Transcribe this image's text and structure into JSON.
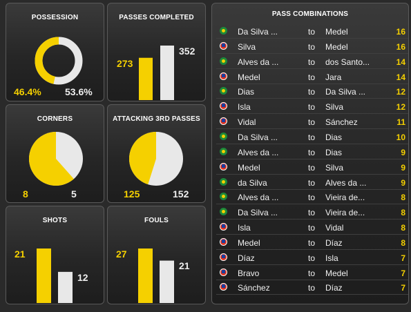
{
  "colors": {
    "yellow": "#f5d000",
    "white": "#e8e8e8",
    "background": "#2a2a2a"
  },
  "possession": {
    "title": "POSSESSION",
    "left": "46.4%",
    "right": "53.6%",
    "left_fraction": 0.464
  },
  "passes": {
    "title": "PASSES COMPLETED",
    "left": "273",
    "right": "352",
    "left_value": 273,
    "right_value": 352
  },
  "corners": {
    "title": "CORNERS",
    "left": "8",
    "right": "5",
    "left_value": 8,
    "right_value": 5
  },
  "attacking": {
    "title": "ATTACKING 3RD PASSES",
    "left": "125",
    "right": "152",
    "left_value": 125,
    "right_value": 152
  },
  "shots": {
    "title": "SHOTS",
    "left": "21",
    "right": "12",
    "left_value": 21,
    "right_value": 12
  },
  "fouls": {
    "title": "FOULS",
    "left": "27",
    "right": "21",
    "left_value": 27,
    "right_value": 21
  },
  "combos": {
    "title": "PASS COMBINATIONS",
    "connector": "to",
    "rows": [
      {
        "flag": "brazil-flag-icon",
        "from": "Da Silva ...",
        "to": "Medel",
        "count": "16"
      },
      {
        "flag": "chile-flag-icon",
        "from": "Silva",
        "to": "Medel",
        "count": "16"
      },
      {
        "flag": "brazil-flag-icon",
        "from": "Alves da ...",
        "to": "dos Santo...",
        "count": "14"
      },
      {
        "flag": "chile-flag-icon",
        "from": "Medel",
        "to": "Jara",
        "count": "14"
      },
      {
        "flag": "brazil-flag-icon",
        "from": "Dias",
        "to": "Da Silva ...",
        "count": "12"
      },
      {
        "flag": "chile-flag-icon",
        "from": "Isla",
        "to": "Silva",
        "count": "12"
      },
      {
        "flag": "chile-flag-icon",
        "from": "Vidal",
        "to": "Sánchez",
        "count": "11"
      },
      {
        "flag": "brazil-flag-icon",
        "from": "Da Silva ...",
        "to": "Dias",
        "count": "10"
      },
      {
        "flag": "brazil-flag-icon",
        "from": "Alves da ...",
        "to": "Dias",
        "count": "9"
      },
      {
        "flag": "chile-flag-icon",
        "from": "Medel",
        "to": "Silva",
        "count": "9"
      },
      {
        "flag": "brazil-flag-icon",
        "from": "da Silva",
        "to": "Alves da ...",
        "count": "9"
      },
      {
        "flag": "brazil-flag-icon",
        "from": "Alves da ...",
        "to": "Vieira de...",
        "count": "8"
      },
      {
        "flag": "brazil-flag-icon",
        "from": "Da Silva ...",
        "to": "Vieira de...",
        "count": "8"
      },
      {
        "flag": "chile-flag-icon",
        "from": "Isla",
        "to": "Vidal",
        "count": "8"
      },
      {
        "flag": "chile-flag-icon",
        "from": "Medel",
        "to": "Díaz",
        "count": "8"
      },
      {
        "flag": "chile-flag-icon",
        "from": "Díaz",
        "to": "Isla",
        "count": "7"
      },
      {
        "flag": "chile-flag-icon",
        "from": "Bravo",
        "to": "Medel",
        "count": "7"
      },
      {
        "flag": "chile-flag-icon",
        "from": "Sánchez",
        "to": "Díaz",
        "count": "7"
      }
    ]
  }
}
